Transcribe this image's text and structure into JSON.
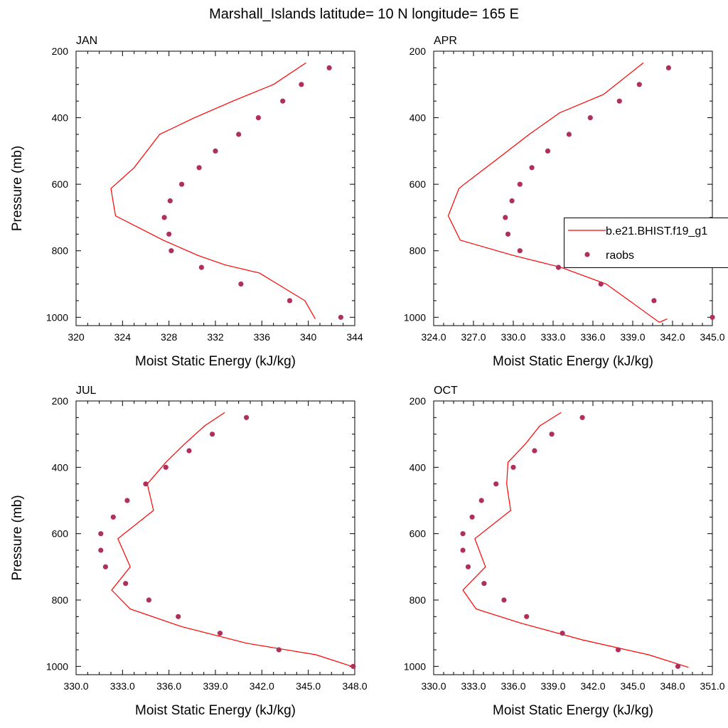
{
  "figure": {
    "title": "Marshall_Islands  latitude= 10 N longitude= 165 E"
  },
  "colors": {
    "model_line": "#ff0000",
    "obs_marker": "#b0305c",
    "axis": "#000000"
  },
  "legend": {
    "panel": 1,
    "entries": [
      {
        "label": "b.e21.BHIST.f19_g1",
        "kind": "line"
      },
      {
        "label": "raobs",
        "kind": "marker"
      }
    ]
  },
  "chart_data": [
    {
      "type": "line",
      "panel_label": "JAN",
      "xlabel": "Moist Static Energy (kJ/kg)",
      "ylabel": "Pressure (mb)",
      "xlim": [
        320,
        344
      ],
      "ylim": [
        200,
        1025
      ],
      "y_reversed": true,
      "xticks": [
        320,
        324,
        328,
        332,
        336,
        340,
        344
      ],
      "xtick_labels": [
        "320",
        "324",
        "328",
        "332",
        "336",
        "340",
        "344"
      ],
      "yticks": [
        200,
        400,
        600,
        800,
        1000
      ],
      "ytick_labels": [
        "200",
        "400",
        "600",
        "800",
        "1000"
      ],
      "series": [
        {
          "name": "b.e21.BHIST.f19_g1",
          "style": "line",
          "x": [
            339.8,
            337.0,
            333.5,
            330.2,
            327.2,
            325.0,
            323.0,
            323.4,
            327.5,
            330.5,
            332.8,
            335.8,
            339.7,
            340.6
          ],
          "y": [
            235,
            300,
            350,
            400,
            450,
            550,
            613,
            695,
            768,
            814,
            842,
            867,
            950,
            1005
          ]
        },
        {
          "name": "raobs",
          "style": "marker",
          "x": [
            341.8,
            339.4,
            337.8,
            335.7,
            334.0,
            332.0,
            330.6,
            329.1,
            328.1,
            327.6,
            328.0,
            328.2,
            330.8,
            334.2,
            338.4,
            342.8
          ],
          "y": [
            250,
            300,
            350,
            400,
            450,
            500,
            550,
            600,
            650,
            700,
            750,
            800,
            850,
            900,
            950,
            1000
          ]
        }
      ]
    },
    {
      "type": "line",
      "panel_label": "APR",
      "xlabel": "Moist Static Energy (kJ/kg)",
      "ylabel": "",
      "xlim": [
        324,
        345
      ],
      "ylim": [
        200,
        1025
      ],
      "y_reversed": true,
      "xticks": [
        324,
        327,
        330,
        333,
        336,
        339,
        342,
        345
      ],
      "xtick_labels": [
        "324.0",
        "327.0",
        "330.0",
        "333.0",
        "336.0",
        "339.0",
        "342.0",
        "345.0"
      ],
      "yticks": [
        200,
        400,
        600,
        800,
        1000
      ],
      "ytick_labels": [
        "200",
        "400",
        "600",
        "800",
        "1000"
      ],
      "series": [
        {
          "name": "b.e21.BHIST.f19_g1",
          "style": "line",
          "x": [
            339.8,
            336.8,
            333.5,
            331.2,
            328.7,
            326.3,
            325.9,
            325.1,
            326.0,
            330.0,
            333.6,
            337.0,
            341.0,
            341.6
          ],
          "y": [
            235,
            330,
            385,
            450,
            527,
            600,
            613,
            695,
            768,
            814,
            850,
            900,
            1015,
            1005
          ]
        },
        {
          "name": "raobs",
          "style": "marker",
          "x": [
            341.7,
            339.5,
            338.0,
            335.8,
            334.2,
            332.6,
            331.4,
            330.5,
            329.9,
            329.4,
            329.6,
            330.5,
            333.4,
            336.6,
            340.6,
            345.0
          ],
          "y": [
            250,
            300,
            350,
            400,
            450,
            500,
            550,
            600,
            650,
            700,
            750,
            800,
            850,
            900,
            950,
            1000
          ]
        }
      ]
    },
    {
      "type": "line",
      "panel_label": "JUL",
      "xlabel": "Moist Static Energy (kJ/kg)",
      "ylabel": "Pressure (mb)",
      "xlim": [
        330,
        348
      ],
      "ylim": [
        200,
        1025
      ],
      "y_reversed": true,
      "xticks": [
        330,
        333,
        336,
        339,
        342,
        345,
        348
      ],
      "xtick_labels": [
        "330.0",
        "333.0",
        "336.0",
        "339.0",
        "342.0",
        "345.0",
        "348.0"
      ],
      "yticks": [
        200,
        400,
        600,
        800,
        1000
      ],
      "ytick_labels": [
        "200",
        "400",
        "600",
        "800",
        "1000"
      ],
      "series": [
        {
          "name": "b.e21.BHIST.f19_g1",
          "style": "line",
          "x": [
            339.6,
            338.3,
            337.0,
            335.8,
            334.6,
            335.0,
            332.7,
            333.5,
            332.3,
            333.5,
            336.8,
            341.0,
            345.5,
            348.0
          ],
          "y": [
            235,
            275,
            330,
            385,
            450,
            530,
            615,
            700,
            770,
            827,
            880,
            930,
            965,
            1003
          ]
        },
        {
          "name": "raobs",
          "style": "marker",
          "x": [
            341.0,
            338.8,
            337.3,
            335.8,
            334.5,
            333.3,
            332.4,
            331.6,
            331.6,
            331.9,
            333.2,
            334.7,
            336.6,
            339.3,
            343.1,
            347.9
          ],
          "y": [
            250,
            300,
            350,
            400,
            450,
            500,
            550,
            600,
            650,
            700,
            750,
            800,
            850,
            900,
            950,
            1000
          ]
        }
      ]
    },
    {
      "type": "line",
      "panel_label": "OCT",
      "xlabel": "Moist Static Energy (kJ/kg)",
      "ylabel": "",
      "xlim": [
        330,
        351
      ],
      "ylim": [
        200,
        1025
      ],
      "y_reversed": true,
      "xticks": [
        330,
        333,
        336,
        339,
        342,
        345,
        348,
        351
      ],
      "xtick_labels": [
        "330.0",
        "333.0",
        "336.0",
        "339.0",
        "342.0",
        "345.0",
        "348.0",
        "351.0"
      ],
      "yticks": [
        200,
        400,
        600,
        800,
        1000
      ],
      "ytick_labels": [
        "200",
        "400",
        "600",
        "800",
        "1000"
      ],
      "series": [
        {
          "name": "b.e21.BHIST.f19_g1",
          "style": "line",
          "x": [
            339.6,
            338.0,
            336.9,
            335.6,
            335.5,
            335.8,
            333.1,
            333.9,
            332.2,
            333.2,
            336.6,
            341.2,
            346.2,
            349.2
          ],
          "y": [
            235,
            275,
            330,
            385,
            450,
            530,
            615,
            700,
            770,
            827,
            870,
            920,
            965,
            1003
          ]
        },
        {
          "name": "raobs",
          "style": "marker",
          "x": [
            341.2,
            338.9,
            337.6,
            336.0,
            334.7,
            333.6,
            332.9,
            332.2,
            332.2,
            332.6,
            333.8,
            335.3,
            337.0,
            339.7,
            343.9,
            348.4
          ],
          "y": [
            250,
            300,
            350,
            400,
            450,
            500,
            550,
            600,
            650,
            700,
            750,
            800,
            850,
            900,
            950,
            1000
          ]
        }
      ]
    }
  ]
}
